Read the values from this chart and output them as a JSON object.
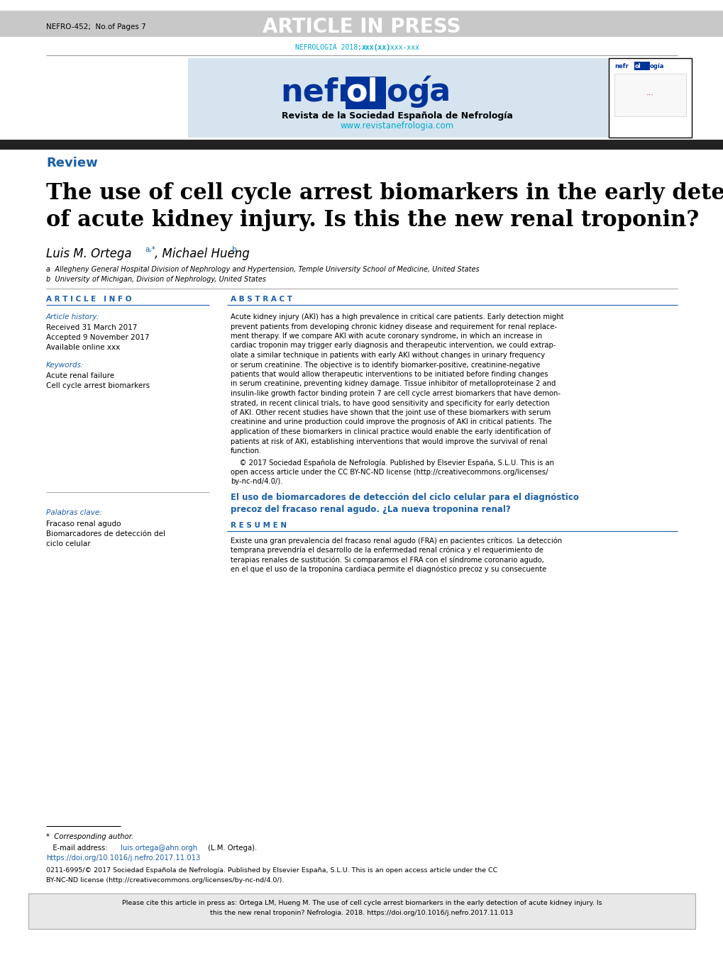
{
  "header_bg": "#c8c8c8",
  "header_text": "ARTICLE IN PRESS",
  "header_left": "NEFRO-452;  No.of Pages 7",
  "journal_ref_normal": "NEFROLOGIA 2018;",
  "journal_ref_bold": "xxx(xx)",
  "journal_ref_end": ":xxx-xxx",
  "journal_ref_color": "#00aacc",
  "dark_bar_color": "#222222",
  "review_label": "Review",
  "review_color": "#1a5fa8",
  "title_line1": "The use of cell cycle arrest biomarkers in the early detection",
  "title_line2": "of acute kidney injury. Is this the new renal troponin?",
  "author_line": "Luis M. Ortega ",
  "author_sup1": "a,*",
  "author_mid": ", Michael Hueng",
  "author_sup2": "b",
  "affil_a": "a  Allegheny General Hospital Division of Nephrology and Hypertension, Temple University School of Medicine, United States",
  "affil_b": "b  University of Michigan, Division of Nephrology, United States",
  "article_info_title": "A R T I C L E   I N F O",
  "article_history_label": "Article history:",
  "received": "Received 31 March 2017",
  "accepted": "Accepted 9 November 2017",
  "available": "Available online xxx",
  "keywords_label": "Keywords:",
  "kw1": "Acute renal failure",
  "kw2": "Cell cycle arrest biomarkers",
  "abstract_title": "A B S T R A C T",
  "abstract_text": "Acute kidney injury (AKI) has a high prevalence in critical care patients. Early detection might\nprevent patients from developing chronic kidney disease and requirement for renal replace-\nment therapy. If we compare AKI with acute coronary syndrome, in which an increase in\ncardiac troponin may trigger early diagnosis and therapeutic intervention, we could extrap-\nolate a similar technique in patients with early AKI without changes in urinary frequency\nor serum creatinine. The objective is to identify biomarker-positive, creatinine-negative\npatients that would allow therapeutic interventions to be initiated before finding changes\nin serum creatinine, preventing kidney damage. Tissue inhibitor of metalloproteinase 2 and\ninsulin-like growth factor binding protein 7 are cell cycle arrest biomarkers that have demon-\nstrated, in recent clinical trials, to have good sensitivity and specificity for early detection\nof AKI. Other recent studies have shown that the joint use of these biomarkers with serum\ncreatinine and urine production could improve the prognosis of AKI in critical patients. The\napplication of these biomarkers in clinical practice would enable the early identification of\npatients at risk of AKI, establishing interventions that would improve the survival of renal\nfunction.",
  "copyright_line1": "    © 2017 Sociedad Española de Nefrología. Published by Elsevier España, S.L.U. This is an",
  "copyright_line2": "open access article under the CC BY-NC-ND license (http://creativecommons.org/licenses/",
  "copyright_line3": "by-nc-nd/4.0/).",
  "spanish_title_line1": "El uso de biomarcadores de detección del ciclo celular para el diagnóstico",
  "spanish_title_line2": "precoz del fracaso renal agudo. ¿La nueva troponina renal?",
  "spanish_title_color": "#1a5fa8",
  "resumen_title": "R E S U M E N",
  "resumen_text": "Existe una gran prevalencia del fracaso renal agudo (FRA) en pacientes críticos. La detección\ntemprana prevendría el desarrollo de la enfermedad renal crónica y el requerimiento de\nterapias renales de sustitución. Si comparamos el FRA con el síndrome coronario agudo,\nen el que el uso de la troponina cardiaca permite el diagnóstico precoz y su consecuente",
  "palabras_clave_label": "Palabras clave:",
  "pk1": "Fracaso renal agudo",
  "pk2": "Biomarcadores de detección del",
  "pk3": "ciclo celular",
  "footer_line1": "*  Corresponding author.",
  "footer_email_pre": "   E-mail address: ",
  "footer_email": "luis.ortega@ahn.orgh",
  "footer_email_post": " (L.M. Ortega).",
  "footer_doi": "https://doi.org/10.1016/j.nefro.2017.11.013",
  "footer_doi_color": "#1a5fa8",
  "footer_copy_line1": "0211-6995/© 2017 Sociedad Española de Nefrología. Published by Elsevier España, S.L.U. This is an open access article under the CC",
  "footer_copy_line2": "BY-NC-ND license (http://creativecommons.org/licenses/by-nc-nd/4.0/).",
  "cite_text_line1": "Please cite this article in press as: Ortega LM, Hueng M. The use of cell cycle arrest biomarkers in the early detection of acute kidney injury. Is",
  "cite_text_line2": "this the new renal troponin? Nefrologia. 2018. https://doi.org/10.1016/j.nefro.2017.11.013",
  "cite_box_bg": "#e8e8e8",
  "accent_color": "#1a5fa8",
  "logo_blue": "#003399",
  "logo_bg": "#d6e4f0"
}
